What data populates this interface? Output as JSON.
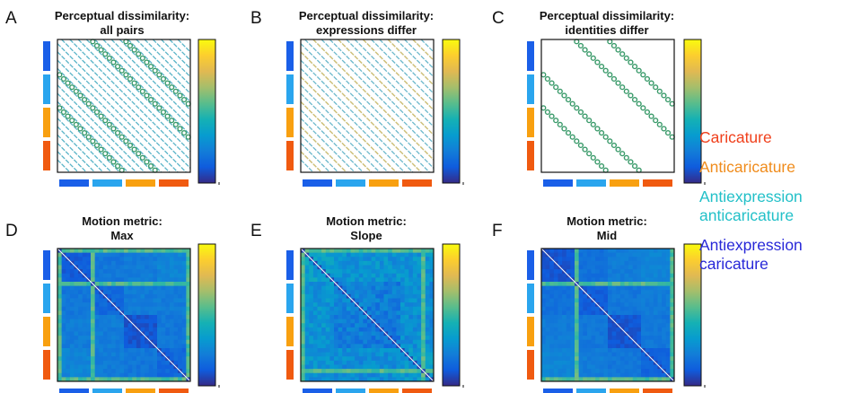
{
  "panels": [
    {
      "letter": "A",
      "title_line1": "Perceptual dissimilarity:",
      "title_line2": "all pairs"
    },
    {
      "letter": "B",
      "title_line1": "Perceptual dissimilarity:",
      "title_line2": "expressions differ"
    },
    {
      "letter": "C",
      "title_line1": "Perceptual dissimilarity:",
      "title_line2": "identities differ"
    },
    {
      "letter": "D",
      "title_line1": "Motion metric:",
      "title_line2": "Max"
    },
    {
      "letter": "E",
      "title_line1": "Motion metric:",
      "title_line2": "Slope"
    },
    {
      "letter": "F",
      "title_line1": "Motion metric:",
      "title_line2": "Mid"
    }
  ],
  "legend": [
    {
      "label": "Caricature",
      "color": "#f0401c"
    },
    {
      "label": "Anticaricature",
      "color": "#f08c1c"
    },
    {
      "label": "Antiexpression anticaricature",
      "line1": "Antiexpression",
      "line2": "anticaricature",
      "color": "#22c0c8"
    },
    {
      "label": "Antiexpression caricature",
      "line1": "Antiexpression",
      "line2": "caricature",
      "color": "#2828d8"
    }
  ],
  "category_colors": [
    "#1a5fe8",
    "#2aa5ee",
    "#f8a010",
    "#f05a10"
  ],
  "colormap": "parula"
}
